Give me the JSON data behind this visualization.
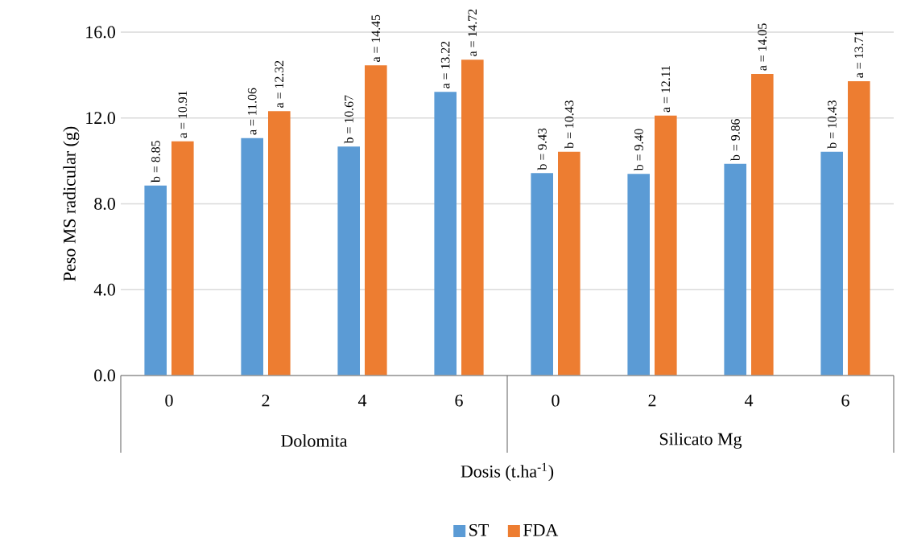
{
  "chart_data": {
    "type": "bar",
    "xlabel": "Dosis (t.ha$^{-1}$)",
    "ylabel": "Peso MS radicular (g)",
    "categories": [
      "0",
      "2",
      "4",
      "6",
      "0",
      "2",
      "4",
      "6"
    ],
    "annotations": [
      "Dolomita",
      "Silicato Mg"
    ],
    "series": [
      {
        "name": "ST",
        "color": "#5b9bd5",
        "values": [
          8.85,
          11.06,
          10.67,
          13.22,
          9.43,
          9.4,
          9.86,
          10.43
        ],
        "value_labels": [
          "b = 8.85",
          "a = 11.06",
          "b = 10.67",
          "a = 13.22",
          "b = 9.43",
          "b = 9.40",
          "b = 9.86",
          "b = 10.43"
        ]
      },
      {
        "name": "FDA",
        "color": "#ed7d31",
        "values": [
          10.91,
          12.32,
          14.45,
          14.72,
          10.43,
          12.11,
          14.05,
          13.71
        ],
        "value_labels": [
          "a = 10.91",
          "a = 12.32",
          "a = 14.45",
          "a = 14.72",
          "b = 10.43",
          "a = 12.11",
          "a = 14.05",
          "a = 13.71"
        ]
      }
    ],
    "ylim": [
      0,
      16
    ],
    "yticks": [
      {
        "value": 0,
        "label": "0.0"
      },
      {
        "value": 4,
        "label": "4.0"
      },
      {
        "value": 8,
        "label": "8.0"
      },
      {
        "value": 12,
        "label": "12.0"
      },
      {
        "value": 16,
        "label": "16.0"
      }
    ],
    "grid": "y",
    "legend": "bottom"
  }
}
